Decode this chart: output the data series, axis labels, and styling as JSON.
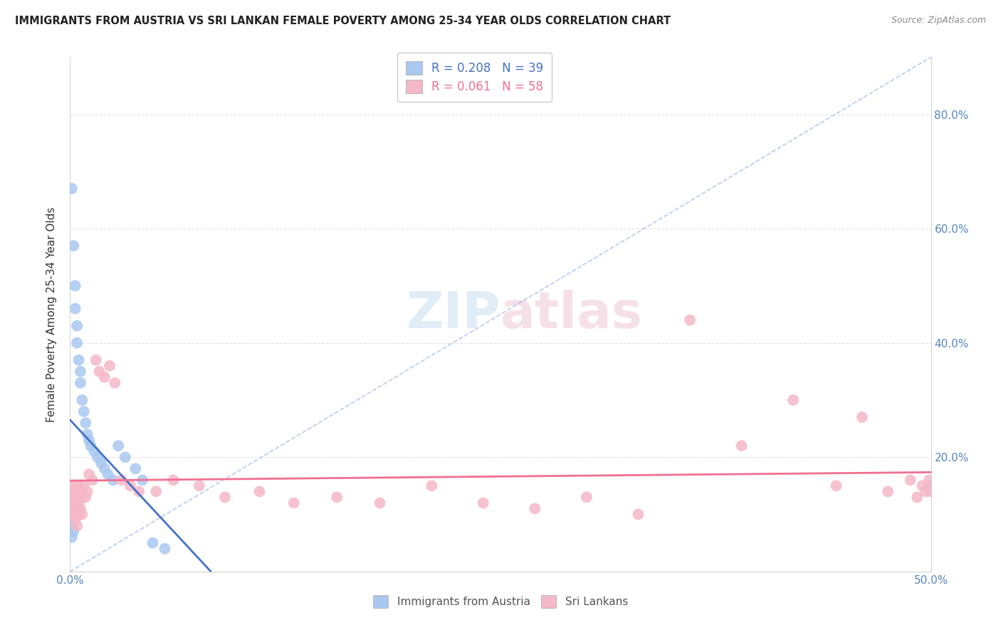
{
  "title": "IMMIGRANTS FROM AUSTRIA VS SRI LANKAN FEMALE POVERTY AMONG 25-34 YEAR OLDS CORRELATION CHART",
  "source": "Source: ZipAtlas.com",
  "ylabel": "Female Poverty Among 25-34 Year Olds",
  "xlim": [
    0.0,
    0.5
  ],
  "ylim": [
    0.0,
    0.9
  ],
  "austria_R": 0.208,
  "austria_N": 39,
  "srilanka_R": 0.061,
  "srilanka_N": 58,
  "austria_color": "#a8c8f0",
  "srilanka_color": "#f5b8c8",
  "austria_line_color": "#4472c4",
  "srilanka_line_color": "#f07090",
  "watermark_left": "ZIP",
  "watermark_right": "atlas",
  "austria_x": [
    0.001,
    0.001,
    0.001,
    0.001,
    0.001,
    0.002,
    0.002,
    0.002,
    0.002,
    0.002,
    0.003,
    0.003,
    0.003,
    0.003,
    0.004,
    0.004,
    0.004,
    0.005,
    0.005,
    0.006,
    0.006,
    0.007,
    0.008,
    0.009,
    0.01,
    0.011,
    0.012,
    0.014,
    0.016,
    0.018,
    0.02,
    0.022,
    0.025,
    0.028,
    0.032,
    0.038,
    0.042,
    0.048,
    0.055
  ],
  "austria_y": [
    0.67,
    0.12,
    0.1,
    0.08,
    0.06,
    0.57,
    0.14,
    0.11,
    0.09,
    0.07,
    0.5,
    0.46,
    0.13,
    0.1,
    0.43,
    0.4,
    0.12,
    0.37,
    0.11,
    0.35,
    0.33,
    0.3,
    0.28,
    0.26,
    0.24,
    0.23,
    0.22,
    0.21,
    0.2,
    0.19,
    0.18,
    0.17,
    0.16,
    0.22,
    0.2,
    0.18,
    0.16,
    0.05,
    0.04
  ],
  "srilanka_x": [
    0.001,
    0.001,
    0.002,
    0.002,
    0.003,
    0.003,
    0.003,
    0.004,
    0.004,
    0.004,
    0.005,
    0.005,
    0.005,
    0.006,
    0.006,
    0.007,
    0.007,
    0.008,
    0.009,
    0.01,
    0.011,
    0.013,
    0.015,
    0.017,
    0.02,
    0.023,
    0.026,
    0.03,
    0.035,
    0.04,
    0.05,
    0.06,
    0.075,
    0.09,
    0.11,
    0.13,
    0.155,
    0.18,
    0.21,
    0.24,
    0.27,
    0.3,
    0.33,
    0.36,
    0.39,
    0.42,
    0.445,
    0.46,
    0.475,
    0.488,
    0.492,
    0.495,
    0.497,
    0.499,
    0.499,
    0.5,
    0.5,
    0.5
  ],
  "srilanka_y": [
    0.13,
    0.1,
    0.15,
    0.12,
    0.14,
    0.11,
    0.09,
    0.13,
    0.1,
    0.08,
    0.15,
    0.12,
    0.1,
    0.14,
    0.11,
    0.13,
    0.1,
    0.15,
    0.13,
    0.14,
    0.17,
    0.16,
    0.37,
    0.35,
    0.34,
    0.36,
    0.33,
    0.16,
    0.15,
    0.14,
    0.14,
    0.16,
    0.15,
    0.13,
    0.14,
    0.12,
    0.13,
    0.12,
    0.15,
    0.12,
    0.11,
    0.13,
    0.1,
    0.44,
    0.22,
    0.3,
    0.15,
    0.27,
    0.14,
    0.16,
    0.13,
    0.15,
    0.14,
    0.16,
    0.15,
    0.14,
    0.15,
    0.15
  ]
}
